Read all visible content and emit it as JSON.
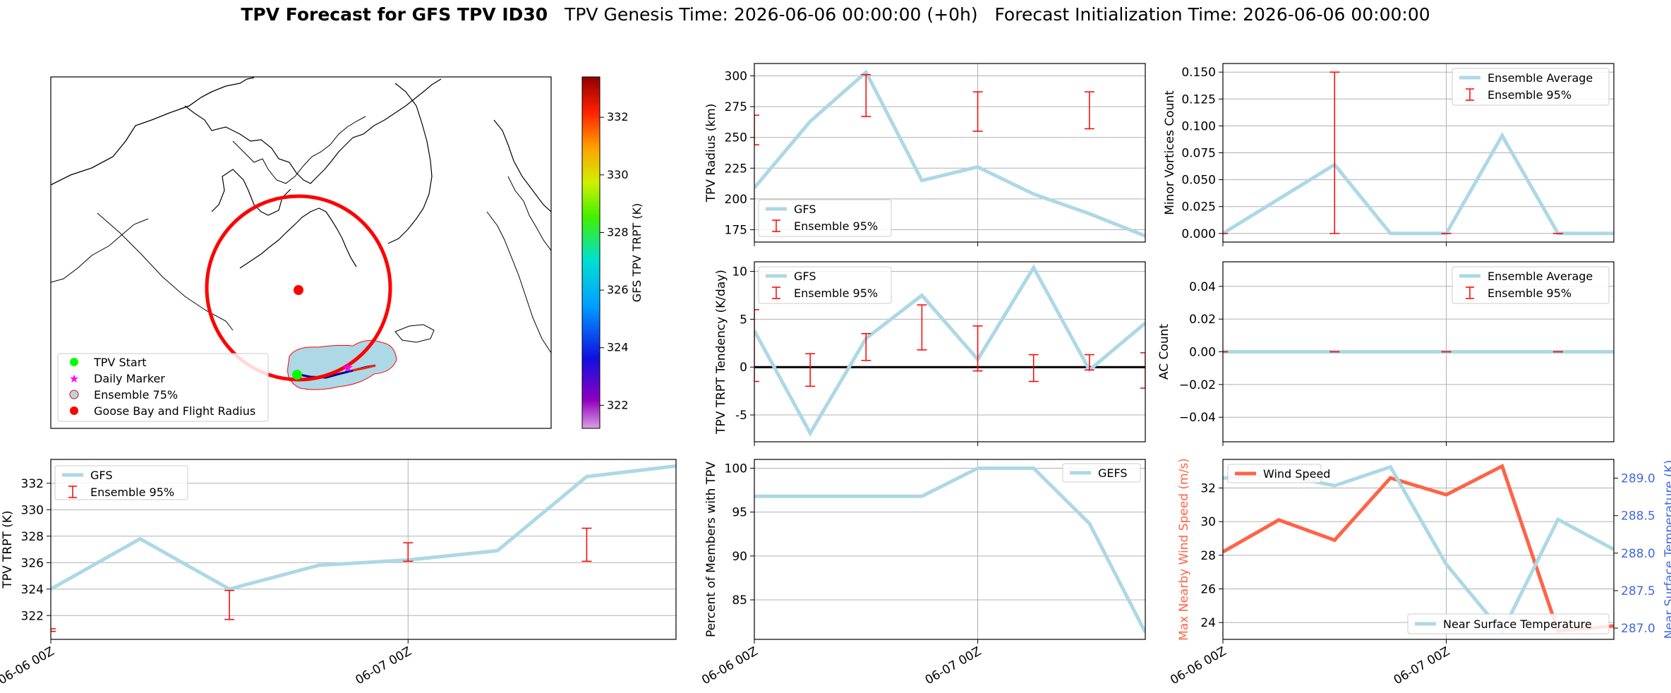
{
  "title": {
    "bold": "TPV Forecast for GFS TPV ID30",
    "genesis": "TPV Genesis Time: 2026-06-06 00:00:00 (+0h)",
    "init": "Forecast Initialization Time: 2026-06-06 00:00:00"
  },
  "colors": {
    "gfs": "#add8e6",
    "error": "#ff0000",
    "wind": "#ff6347",
    "temp_axis": "#4169e1",
    "track": "#00008b",
    "start": "#00ff00",
    "daily": "#ff00ff",
    "goose": "#ff0000"
  },
  "map": {
    "legend": [
      "TPV Start",
      "Daily Marker",
      "Ensemble 75%",
      "Goose Bay and Flight Radius"
    ],
    "colorbar": {
      "label": "GFS TPV TRPT (K)",
      "ticks": [
        322,
        324,
        326,
        328,
        330,
        332
      ],
      "range": [
        321.2,
        333.4
      ]
    },
    "track_trpt": [
      324.0,
      327.8,
      324.0,
      325.8,
      326.2,
      326.9,
      332.5,
      333.3
    ]
  },
  "x_ticks": [
    "06-06 00Z",
    "06-07 00Z"
  ],
  "chart_data": [
    {
      "id": "trpt",
      "type": "line",
      "ylabel": "TPV TRPT (K)",
      "ylim": [
        320.2,
        333.8
      ],
      "yticks": [
        322,
        324,
        326,
        328,
        330,
        332
      ],
      "xlim": [
        0,
        1.75
      ],
      "x": [
        0,
        0.25,
        0.5,
        0.75,
        1.0,
        1.25,
        1.5,
        1.75
      ],
      "series": [
        {
          "name": "GFS",
          "values": [
            324.0,
            327.8,
            324.0,
            325.8,
            326.2,
            326.9,
            332.5,
            333.3
          ]
        }
      ],
      "errorbars": {
        "name": "Ensemble 95%",
        "x": [
          0,
          0.5,
          1.0,
          1.5
        ],
        "low": [
          320.8,
          321.7,
          326.1,
          326.1
        ],
        "high": [
          321.0,
          323.9,
          327.5,
          328.6
        ]
      },
      "legend": "top-left",
      "grid": true
    },
    {
      "id": "radius",
      "type": "line",
      "ylabel": "TPV Radius (km)",
      "ylim": [
        165,
        310
      ],
      "yticks": [
        175,
        200,
        225,
        250,
        275,
        300
      ],
      "xlim": [
        0,
        1.75
      ],
      "x": [
        0,
        0.25,
        0.5,
        0.75,
        1.0,
        1.25,
        1.5,
        1.75
      ],
      "series": [
        {
          "name": "GFS",
          "values": [
            209,
            263,
            303,
            215,
            226,
            204,
            188,
            170
          ]
        }
      ],
      "errorbars": {
        "name": "Ensemble 95%",
        "x": [
          0,
          0.5,
          1.0,
          1.5
        ],
        "low": [
          244,
          267,
          255,
          257
        ],
        "high": [
          268,
          301,
          287,
          287
        ]
      },
      "legend": "bottom-left",
      "grid": true
    },
    {
      "id": "tendency",
      "type": "line",
      "ylabel": "TPV TRPT Tendency (K/day)",
      "ylim": [
        -7.8,
        11
      ],
      "yticks": [
        -5,
        0,
        5,
        10
      ],
      "xlim": [
        0,
        1.75
      ],
      "x": [
        0,
        0.25,
        0.5,
        0.75,
        1.0,
        1.25,
        1.5,
        1.75
      ],
      "series": [
        {
          "name": "GFS",
          "values": [
            3.8,
            -6.9,
            3.0,
            7.5,
            0.8,
            10.4,
            -0.3,
            4.6
          ]
        }
      ],
      "errorbars": {
        "name": "Ensemble 95%",
        "x": [
          0,
          0.25,
          0.5,
          0.75,
          1.0,
          1.25,
          1.5,
          1.75
        ],
        "low": [
          -1.5,
          -2.0,
          0.7,
          1.8,
          -0.4,
          -1.5,
          -0.3,
          -2.2
        ],
        "high": [
          6.0,
          1.4,
          3.5,
          6.5,
          4.3,
          1.3,
          1.3,
          1.5
        ]
      },
      "hline": 0,
      "legend": "top-left",
      "grid": true
    },
    {
      "id": "percent",
      "type": "line",
      "ylabel": "Percent of Members with TPV",
      "ylim": [
        80.5,
        101
      ],
      "yticks": [
        85,
        90,
        95,
        100
      ],
      "xlim": [
        0,
        1.75
      ],
      "x": [
        0,
        0.25,
        0.5,
        0.75,
        1.0,
        1.25,
        1.5,
        1.75
      ],
      "series": [
        {
          "name": "GEFS",
          "values": [
            96.8,
            96.8,
            96.8,
            96.8,
            100,
            100,
            93.7,
            81.3
          ]
        }
      ],
      "legend": "top-right",
      "grid": true
    },
    {
      "id": "minor",
      "type": "line",
      "ylabel": "Minor Vortices Count",
      "ylim": [
        -0.008,
        0.158
      ],
      "yticks": [
        0.0,
        0.025,
        0.05,
        0.075,
        0.1,
        0.125,
        0.15
      ],
      "ytick_labels": [
        "0.000",
        "0.025",
        "0.050",
        "0.075",
        "0.100",
        "0.125",
        "0.150"
      ],
      "xlim": [
        0,
        1.75
      ],
      "x": [
        0,
        0.25,
        0.5,
        0.75,
        1.0,
        1.25,
        1.5,
        1.75
      ],
      "series": [
        {
          "name": "Ensemble Average",
          "values": [
            0,
            0.032,
            0.064,
            0,
            0,
            0.091,
            0,
            0
          ]
        }
      ],
      "errorbars": {
        "name": "Ensemble 95%",
        "x": [
          0,
          0.5,
          1.0,
          1.5
        ],
        "low": [
          0,
          0,
          0,
          0
        ],
        "high": [
          0,
          0.15,
          0,
          0
        ]
      },
      "legend": "top-right",
      "grid": true
    },
    {
      "id": "ac",
      "type": "line",
      "ylabel": "AC Count",
      "ylim": [
        -0.055,
        0.055
      ],
      "yticks": [
        -0.04,
        -0.02,
        0.0,
        0.02,
        0.04
      ],
      "ytick_labels": [
        "−0.04",
        "−0.02",
        "0.00",
        "0.02",
        "0.04"
      ],
      "xlim": [
        0,
        1.75
      ],
      "x": [
        0,
        0.25,
        0.5,
        0.75,
        1.0,
        1.25,
        1.5,
        1.75
      ],
      "series": [
        {
          "name": "Ensemble Average",
          "values": [
            0,
            0,
            0,
            0,
            0,
            0,
            0,
            0
          ]
        }
      ],
      "errorbars": {
        "name": "Ensemble 95%",
        "x": [
          0,
          0.5,
          1.0,
          1.5
        ],
        "low": [
          0,
          0,
          0,
          0
        ],
        "high": [
          0,
          0,
          0,
          0
        ]
      },
      "legend": "top-right",
      "grid": true
    },
    {
      "id": "wind_temp",
      "type": "line",
      "ylabel": "Max Nearby Wind Speed (m/s)",
      "ylim": [
        23.0,
        33.7
      ],
      "yticks": [
        24,
        26,
        28,
        30,
        32
      ],
      "xlim": [
        0,
        1.75
      ],
      "x": [
        0,
        0.25,
        0.5,
        0.75,
        1.0,
        1.25,
        1.5,
        1.75
      ],
      "series": [
        {
          "name": "Wind Speed",
          "axis": "left",
          "values": [
            28.2,
            30.1,
            28.9,
            32.6,
            31.6,
            33.3,
            23.5,
            23.8
          ]
        },
        {
          "name": "Near Surface Temperature",
          "axis": "right",
          "values": [
            289.0,
            289.05,
            288.9,
            289.15,
            287.85,
            286.95,
            288.45,
            288.05
          ]
        }
      ],
      "y2label": "Near Surface Temperature (K)",
      "y2lim": [
        286.85,
        289.25
      ],
      "y2ticks": [
        287.0,
        287.5,
        288.0,
        288.5,
        289.0
      ],
      "y2tick_labels": [
        "287.0",
        "287.5",
        "288.0",
        "288.5",
        "289.0"
      ],
      "legend": "top-left / bottom-right",
      "grid": true
    }
  ]
}
